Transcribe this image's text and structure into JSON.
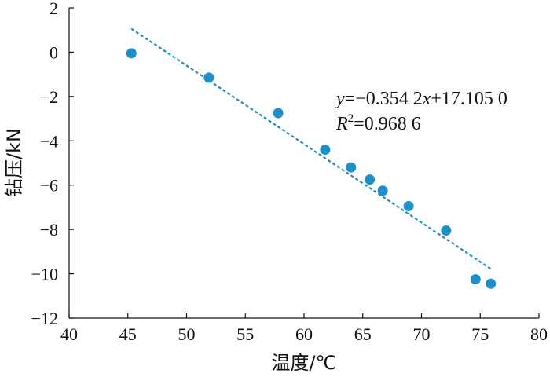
{
  "chart_data": {
    "type": "scatter",
    "title": "",
    "xlabel": "温度/℃",
    "ylabel": "钻压/kN",
    "xlim": [
      40,
      80
    ],
    "ylim": [
      -12,
      2
    ],
    "xticks": [
      40,
      45,
      50,
      55,
      60,
      65,
      70,
      75,
      80
    ],
    "yticks": [
      -12,
      -10,
      -8,
      -6,
      -4,
      -2,
      0,
      2
    ],
    "xtick_labels": [
      "40",
      "45",
      "50",
      "55",
      "60",
      "65",
      "70",
      "75",
      "80"
    ],
    "ytick_labels": [
      "−12",
      "−10",
      "−8",
      "−6",
      "−4",
      "−2",
      "0",
      "2"
    ],
    "grid": false,
    "colors": {
      "marker": "#1f8fc8",
      "trendline": "#1f8fc8"
    },
    "series": [
      {
        "marker": "circle",
        "points": [
          {
            "x": 45.3,
            "y": -0.05
          },
          {
            "x": 51.9,
            "y": -1.15
          },
          {
            "x": 57.8,
            "y": -2.75
          },
          {
            "x": 61.8,
            "y": -4.4
          },
          {
            "x": 64.0,
            "y": -5.2
          },
          {
            "x": 65.6,
            "y": -5.75
          },
          {
            "x": 66.7,
            "y": -6.25
          },
          {
            "x": 68.9,
            "y": -6.95
          },
          {
            "x": 72.1,
            "y": -8.05
          },
          {
            "x": 74.6,
            "y": -10.25
          },
          {
            "x": 75.9,
            "y": -10.45
          }
        ]
      }
    ],
    "trendline": {
      "style": "dashed",
      "slope": -0.3542,
      "intercept": 17.105,
      "x_range": [
        45.3,
        75.9
      ]
    },
    "annotations": {
      "equation": {
        "y_var": "y",
        "eq_text": "=−0.354 2",
        "x_var": "x",
        "rest": "+17.105 0"
      },
      "r_squared": {
        "r_var": "R",
        "sup": "2",
        "value_text": "=0.968 6"
      }
    }
  }
}
